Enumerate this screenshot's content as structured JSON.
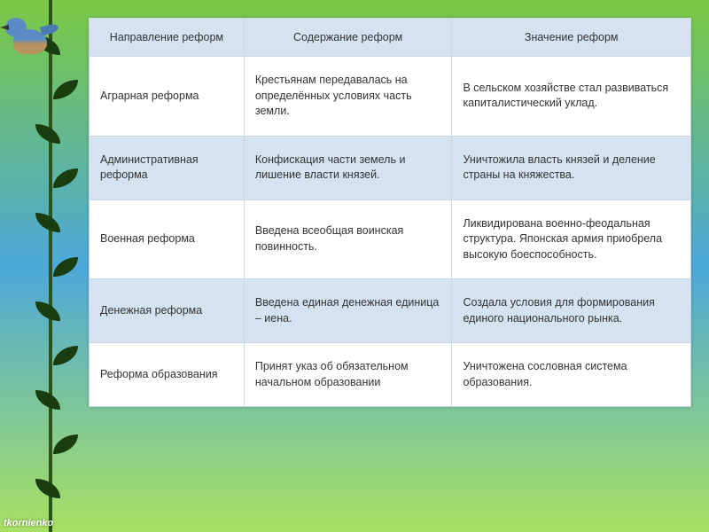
{
  "table": {
    "headers": [
      "Направление реформ",
      "Содержание реформ",
      "Значение реформ"
    ],
    "rows": [
      [
        "Аграрная реформа",
        "Крестьянам передавалась на определённых условиях часть земли.",
        "В сельском хозяйстве стал развиваться капиталистический уклад."
      ],
      [
        "Административная реформа",
        "Конфискация части земель и лишение власти князей.",
        "Уничтожила власть князей и деление страны на княжества."
      ],
      [
        "Военная реформа",
        "Введена всеобщая воинская повинность.",
        "Ликвидирована военно-феодальная структура. Японская армия приобрела высокую боеспособность."
      ],
      [
        "Денежная реформа",
        "Введена единая денежная единица – иена.",
        "Создала условия для формирования единого национального рынка."
      ],
      [
        "Реформа образования",
        "Принят указ об обязательном начальном образовании",
        "Уничтожена сословная система образования."
      ]
    ]
  },
  "credit": "tkornienko",
  "leaf_positions": [
    40,
    90,
    140,
    190,
    240,
    290,
    340,
    390,
    440,
    490,
    540
  ],
  "colors": {
    "header_bg": "#d5e3f0",
    "row_bg": "#ffffff",
    "border": "#c8d6e5"
  }
}
